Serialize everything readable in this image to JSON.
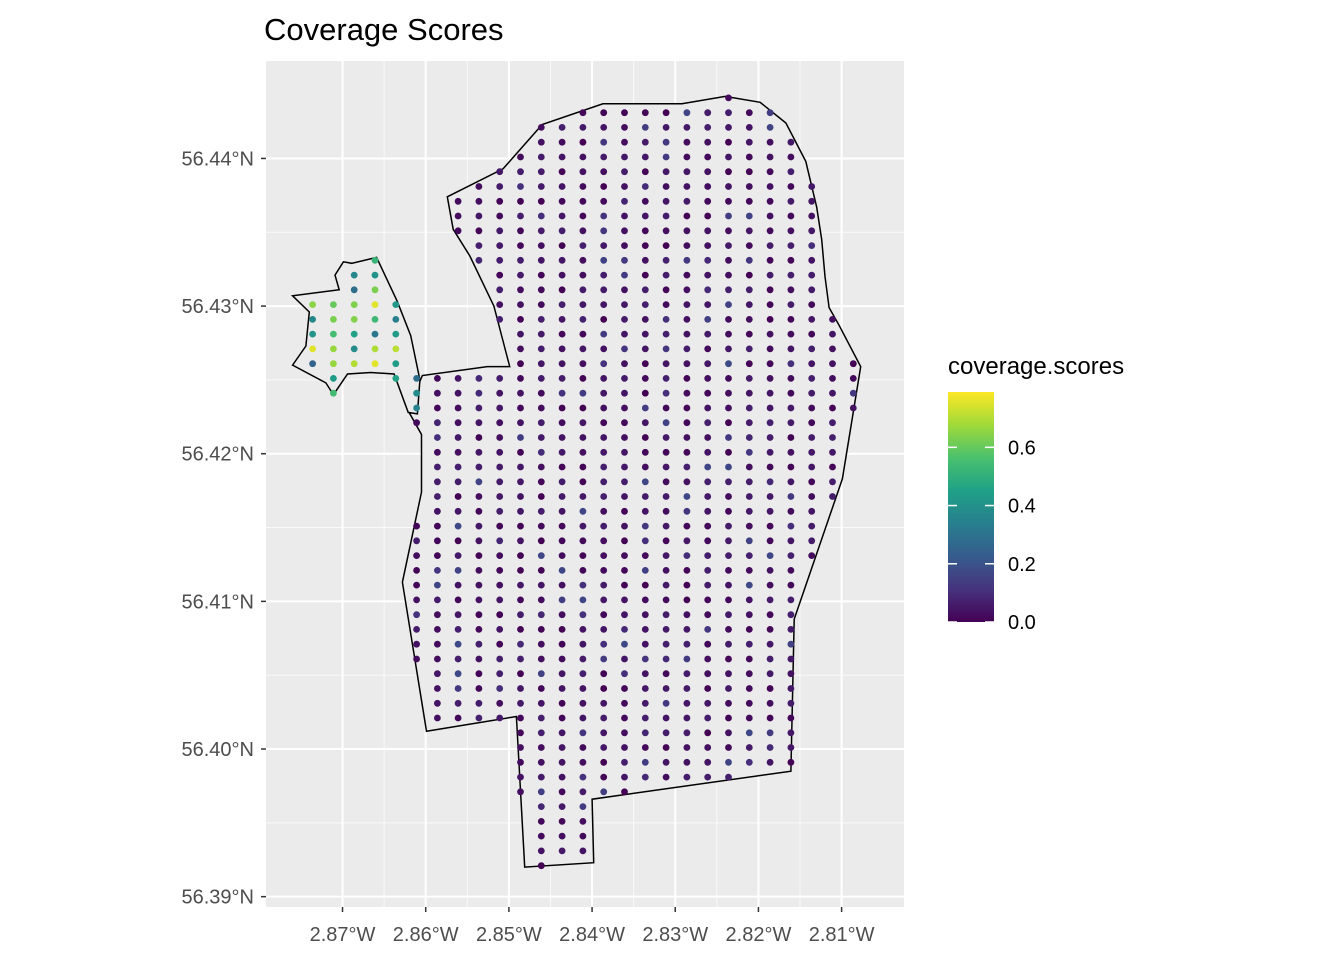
{
  "chart_data": {
    "type": "scatter",
    "title": "Coverage Scores",
    "xlabel": "",
    "ylabel": "",
    "x_ticks": [
      {
        "value": -2.87,
        "label": "2.87°W"
      },
      {
        "value": -2.86,
        "label": "2.86°W"
      },
      {
        "value": -2.85,
        "label": "2.85°W"
      },
      {
        "value": -2.84,
        "label": "2.84°W"
      },
      {
        "value": -2.83,
        "label": "2.83°W"
      },
      {
        "value": -2.82,
        "label": "2.82°W"
      },
      {
        "value": -2.81,
        "label": "2.81°W"
      }
    ],
    "y_ticks": [
      {
        "value": 56.39,
        "label": "56.39°N"
      },
      {
        "value": 56.4,
        "label": "56.40°N"
      },
      {
        "value": 56.41,
        "label": "56.41°N"
      },
      {
        "value": 56.42,
        "label": "56.42°N"
      },
      {
        "value": 56.43,
        "label": "56.43°N"
      },
      {
        "value": 56.44,
        "label": "56.44°N"
      }
    ],
    "xlim": [
      -2.8792,
      -2.8025
    ],
    "ylim": [
      56.3893,
      56.4466
    ],
    "grid": true,
    "legend": {
      "title": "coverage.scores",
      "placement": "right",
      "ticks": [
        {
          "value": 0.0,
          "label": "0.0"
        },
        {
          "value": 0.2,
          "label": "0.2"
        },
        {
          "value": 0.4,
          "label": "0.4"
        },
        {
          "value": 0.6,
          "label": "0.6"
        }
      ],
      "range": [
        0,
        0.79
      ],
      "colors": [
        "#440154",
        "#46337e",
        "#365c8d",
        "#277f8e",
        "#1fa187",
        "#4ac16d",
        "#a0da39",
        "#fde725"
      ]
    },
    "grid_spacing": {
      "dlon": 0.0025,
      "dlat": 0.001
    },
    "polygons": [
      [
        [
          -2.8574,
          56.4374
        ],
        [
          -2.8507,
          56.4393
        ],
        [
          -2.846,
          56.4423
        ],
        [
          -2.8387,
          56.4437
        ],
        [
          -2.8292,
          56.4437
        ],
        [
          -2.824,
          56.4442
        ],
        [
          -2.8198,
          56.4438
        ],
        [
          -2.8167,
          56.4424
        ],
        [
          -2.8143,
          56.4398
        ],
        [
          -2.813,
          56.4367
        ],
        [
          -2.8124,
          56.4345
        ],
        [
          -2.812,
          56.432
        ],
        [
          -2.8115,
          56.4299
        ],
        [
          -2.8103,
          56.4287
        ],
        [
          -2.8077,
          56.4259
        ],
        [
          -2.8099,
          56.4183
        ],
        [
          -2.8157,
          56.4088
        ],
        [
          -2.8161,
          56.3985
        ],
        [
          -2.84,
          56.3966
        ],
        [
          -2.8398,
          56.3923
        ],
        [
          -2.8481,
          56.392
        ],
        [
          -2.8491,
          56.4022
        ],
        [
          -2.8599,
          56.4012
        ],
        [
          -2.8628,
          56.4113
        ],
        [
          -2.8605,
          56.4174
        ],
        [
          -2.8605,
          56.4213
        ],
        [
          -2.8622,
          56.423
        ],
        [
          -2.8604,
          56.4253
        ],
        [
          -2.8526,
          56.4259
        ],
        [
          -2.8499,
          56.4259
        ],
        [
          -2.8518,
          56.43
        ],
        [
          -2.8547,
          56.4334
        ],
        [
          -2.8567,
          56.4352
        ]
      ],
      [
        [
          -2.876,
          56.4307
        ],
        [
          -2.874,
          56.4296
        ],
        [
          -2.8744,
          56.4273
        ],
        [
          -2.876,
          56.426
        ],
        [
          -2.872,
          56.4248
        ],
        [
          -2.8711,
          56.424
        ],
        [
          -2.8694,
          56.4254
        ],
        [
          -2.8666,
          56.4255
        ],
        [
          -2.8638,
          56.4254
        ],
        [
          -2.8621,
          56.4228
        ],
        [
          -2.861,
          56.4227
        ],
        [
          -2.8607,
          56.425
        ],
        [
          -2.8618,
          56.428
        ],
        [
          -2.8634,
          56.4303
        ],
        [
          -2.8659,
          56.4333
        ],
        [
          -2.8689,
          56.4329
        ],
        [
          -2.8699,
          56.433
        ],
        [
          -2.8709,
          56.4321
        ],
        [
          -2.8704,
          56.4311
        ]
      ]
    ]
  }
}
